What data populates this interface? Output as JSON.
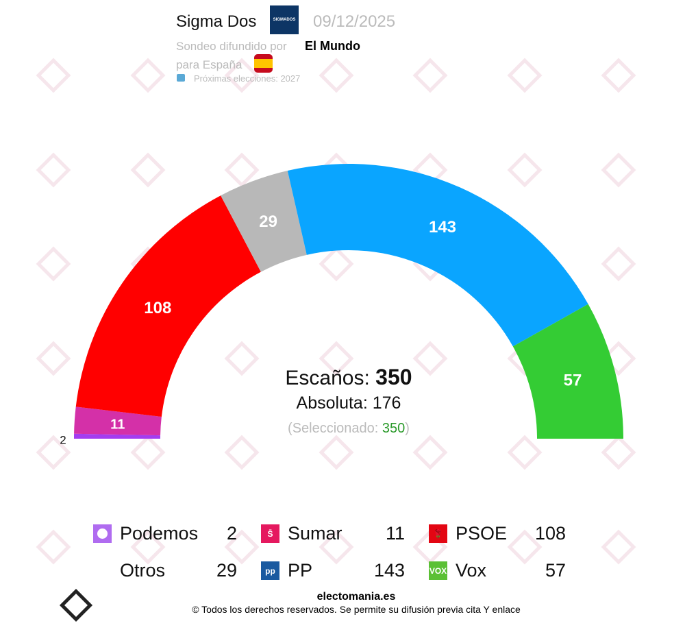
{
  "header": {
    "pollster": "Sigma Dos",
    "pollster_logo": "SIGMADOS",
    "date": "09/12/2025",
    "subtitle": "Sondeo difundido por",
    "media": "El Mundo",
    "region": "para España",
    "next_elections": "Próximas elecciones: 2027"
  },
  "watermark": "Electomania",
  "center": {
    "seats_label": "Escaños:",
    "seats": "350",
    "majority_label": "Absoluta: 176",
    "selected_label": "(Seleccionado:",
    "selected": "350",
    ")": ")"
  },
  "chart_data": {
    "type": "hemicycle",
    "total": 350,
    "majority": 176,
    "categories": [
      "Podemos",
      "Sumar",
      "PSOE",
      "Otros",
      "PP",
      "Vox"
    ],
    "values": [
      2,
      11,
      108,
      29,
      143,
      57
    ],
    "colors": [
      "#a43cf0",
      "#d430a8",
      "#ff0000",
      "#b8b8b8",
      "#0aa5ff",
      "#34cc34"
    ]
  },
  "legend": [
    {
      "name": "Podemos",
      "seats": "2",
      "color": "#b06cf0",
      "icon": "podemos-circle-icon"
    },
    {
      "name": "Sumar",
      "seats": "11",
      "color": "#e5195f",
      "icon": "sumar-logo-icon",
      "glyph": "S̄"
    },
    {
      "name": "PSOE",
      "seats": "108",
      "color": "#e30613",
      "icon": "psoe-rose-icon",
      "glyph": "🌹"
    },
    {
      "name": "Otros",
      "seats": "29",
      "color": "",
      "icon": ""
    },
    {
      "name": "PP",
      "seats": "143",
      "color": "#1a5aa0",
      "icon": "pp-logo-icon",
      "glyph": "pp"
    },
    {
      "name": "Vox",
      "seats": "57",
      "color": "#5bc035",
      "icon": "vox-logo-icon",
      "glyph": "VOX"
    }
  ],
  "footer": {
    "site": "electomania.es",
    "copyright": "© Todos los derechos reservados. Se permite su difusión previa cita Y enlace"
  }
}
